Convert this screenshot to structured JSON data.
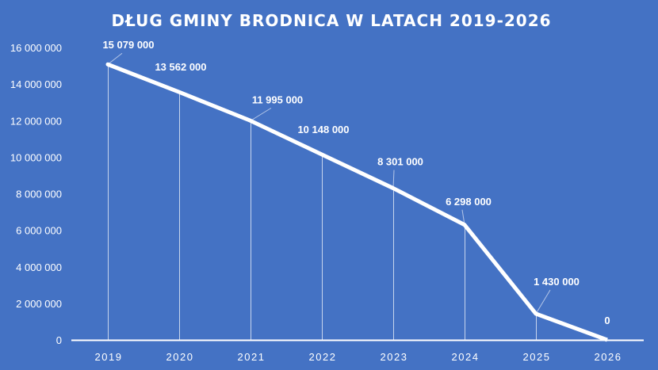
{
  "chart_data": {
    "type": "line",
    "title": "DŁUG GMINY BRODNICA W LATACH 2019-2026",
    "xlabel": "",
    "ylabel": "",
    "categories": [
      "2019",
      "2020",
      "2021",
      "2022",
      "2023",
      "2024",
      "2025",
      "2026"
    ],
    "values": [
      15079000,
      13562000,
      11995000,
      10148000,
      8301000,
      6298000,
      1430000,
      0
    ],
    "data_labels": [
      "15 079 000",
      "13 562 000",
      "11 995 000",
      "10 148 000",
      "8 301 000",
      "6 298 000",
      "1 430 000",
      "0"
    ],
    "ylim": [
      0,
      16000000
    ],
    "yticks": [
      0,
      2000000,
      4000000,
      6000000,
      8000000,
      10000000,
      12000000,
      14000000,
      16000000
    ],
    "ytick_labels": [
      "0",
      "2 000 000",
      "4 000 000",
      "6 000 000",
      "8 000 000",
      "10 000 000",
      "12 000 000",
      "14 000 000",
      "16 000 000"
    ],
    "grid": false,
    "drop_lines": true,
    "colors": {
      "background": "#4472C4",
      "line": "#FFFFFF",
      "text": "#FFFFFF"
    }
  }
}
